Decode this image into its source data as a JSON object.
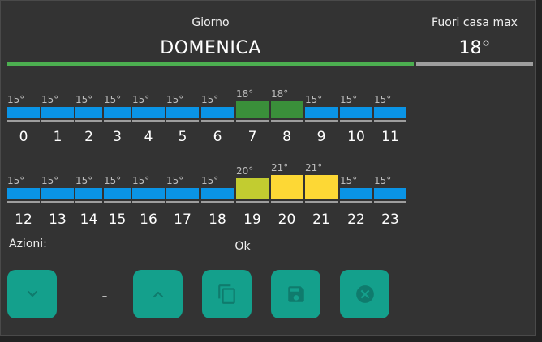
{
  "header": {
    "day_label": "Giorno",
    "day_value": "DOMENICA",
    "away_label": "Fuori casa max",
    "away_value": "18°"
  },
  "colors": {
    "temp_15": "#0a94e6",
    "temp_18": "#3a8f3a",
    "temp_20": "#c2cc30",
    "temp_21": "#fdd835",
    "day_bar": "#4caf50",
    "button": "#14a08c",
    "button_icon": "#0f7b6d"
  },
  "schedule": [
    {
      "hour": "0",
      "temp": "15°"
    },
    {
      "hour": "1",
      "temp": "15°"
    },
    {
      "hour": "2",
      "temp": "15°"
    },
    {
      "hour": "3",
      "temp": "15°"
    },
    {
      "hour": "4",
      "temp": "15°"
    },
    {
      "hour": "5",
      "temp": "15°"
    },
    {
      "hour": "6",
      "temp": "15°"
    },
    {
      "hour": "7",
      "temp": "18°"
    },
    {
      "hour": "8",
      "temp": "18°"
    },
    {
      "hour": "9",
      "temp": "15°"
    },
    {
      "hour": "10",
      "temp": "15°"
    },
    {
      "hour": "11",
      "temp": "15°"
    },
    {
      "hour": "12",
      "temp": "15°"
    },
    {
      "hour": "13",
      "temp": "15°"
    },
    {
      "hour": "14",
      "temp": "15°"
    },
    {
      "hour": "15",
      "temp": "15°"
    },
    {
      "hour": "16",
      "temp": "15°"
    },
    {
      "hour": "17",
      "temp": "15°"
    },
    {
      "hour": "18",
      "temp": "15°"
    },
    {
      "hour": "19",
      "temp": "20°"
    },
    {
      "hour": "20",
      "temp": "21°"
    },
    {
      "hour": "21",
      "temp": "21°"
    },
    {
      "hour": "22",
      "temp": "15°"
    },
    {
      "hour": "23",
      "temp": "15°"
    }
  ],
  "actions": {
    "label": "Azioni:",
    "status": "Ok",
    "value_display": "-",
    "buttons": [
      {
        "name": "decrease-button",
        "icon": "chevron-down-icon"
      },
      {
        "name": "increase-button",
        "icon": "chevron-up-icon"
      },
      {
        "name": "copy-button",
        "icon": "copy-icon"
      },
      {
        "name": "save-button",
        "icon": "save-icon"
      },
      {
        "name": "cancel-button",
        "icon": "cancel-icon"
      }
    ]
  }
}
